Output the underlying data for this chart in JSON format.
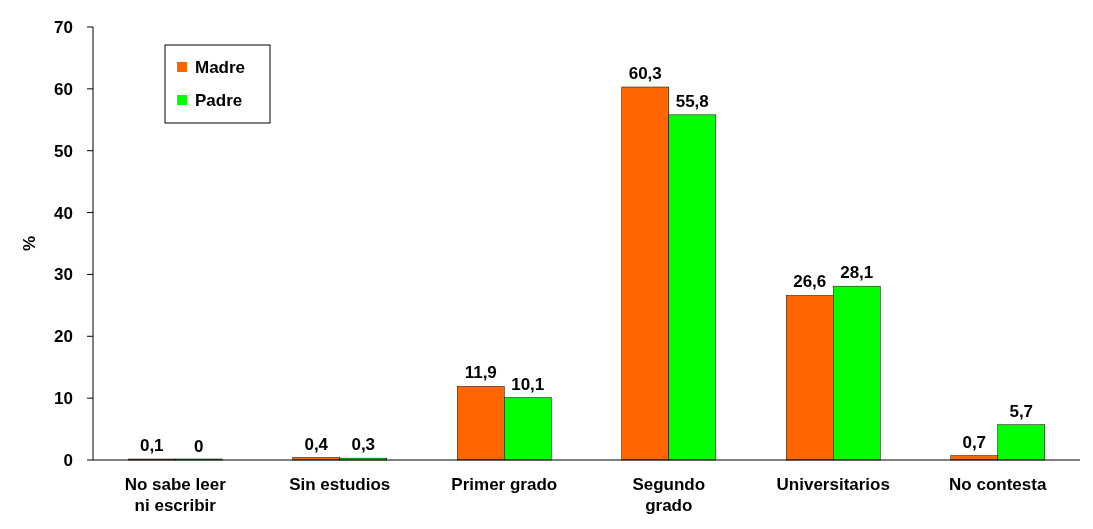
{
  "chart_data": {
    "type": "bar",
    "ylabel": "%",
    "categories": [
      "No sabe leer\nni escribir",
      "Sin estudios",
      "Primer grado",
      "Segundo\ngrado",
      "Universitarios",
      "No contesta"
    ],
    "series": [
      {
        "name": "Madre",
        "color": "#ff6600",
        "values": [
          0.1,
          0.4,
          11.9,
          60.3,
          26.6,
          0.7
        ],
        "value_labels": [
          "0,1",
          "0,4",
          "11,9",
          "60,3",
          "26,6",
          "0,7"
        ]
      },
      {
        "name": "Padre",
        "color": "#00ff00",
        "values": [
          0,
          0.3,
          10.1,
          55.8,
          28.1,
          5.7
        ],
        "value_labels": [
          "0",
          "0,3",
          "10,1",
          "55,8",
          "28,1",
          "5,7"
        ]
      }
    ],
    "ylim": [
      0,
      70
    ],
    "yticks": [
      0,
      10,
      20,
      30,
      40,
      50,
      60,
      70
    ],
    "grid": false,
    "legend": "top left"
  }
}
